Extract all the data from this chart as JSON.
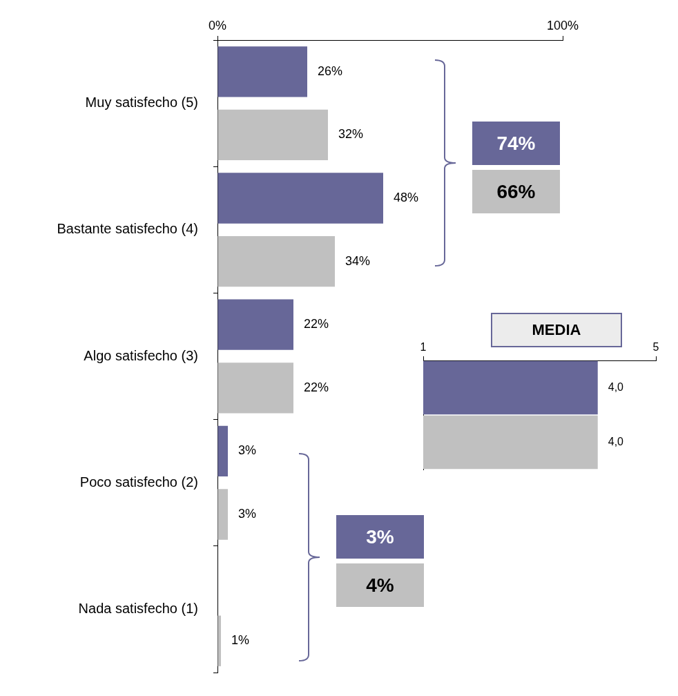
{
  "chart_data": [
    {
      "type": "bar",
      "orientation": "horizontal",
      "categories": [
        "Muy satisfecho (5)",
        "Bastante satisfecho (4)",
        "Algo satisfecho (3)",
        "Poco satisfecho (2)",
        "Nada satisfecho (1)"
      ],
      "series": [
        {
          "color": "#676798",
          "values": [
            26,
            48,
            22,
            3,
            0
          ],
          "value_labels": [
            "26%",
            "48%",
            "22%",
            "3%",
            null
          ]
        },
        {
          "color": "#c0c0c0",
          "values": [
            32,
            34,
            22,
            3,
            1
          ],
          "value_labels": [
            "32%",
            "34%",
            "22%",
            "3%",
            "1%"
          ]
        }
      ],
      "xlim": [
        0,
        100
      ],
      "xticks": [
        {
          "value": 0,
          "label": "0%"
        },
        {
          "value": 100,
          "label": "100%"
        }
      ],
      "grid": false,
      "legend": false,
      "annotations": [
        "74%",
        "66%",
        "3%",
        "4%"
      ]
    },
    {
      "type": "bar",
      "orientation": "horizontal",
      "title": "MEDIA",
      "categories": [
        null
      ],
      "series": [
        {
          "color": "#676798",
          "values": [
            4.0
          ],
          "value_labels": [
            "4,0"
          ]
        },
        {
          "color": "#c0c0c0",
          "values": [
            4.0
          ],
          "value_labels": [
            "4,0"
          ]
        }
      ],
      "xlim": [
        1,
        5
      ],
      "xticks": [
        1,
        5
      ],
      "grid": false,
      "legend": false,
      "tick_labels": "x"
    }
  ]
}
